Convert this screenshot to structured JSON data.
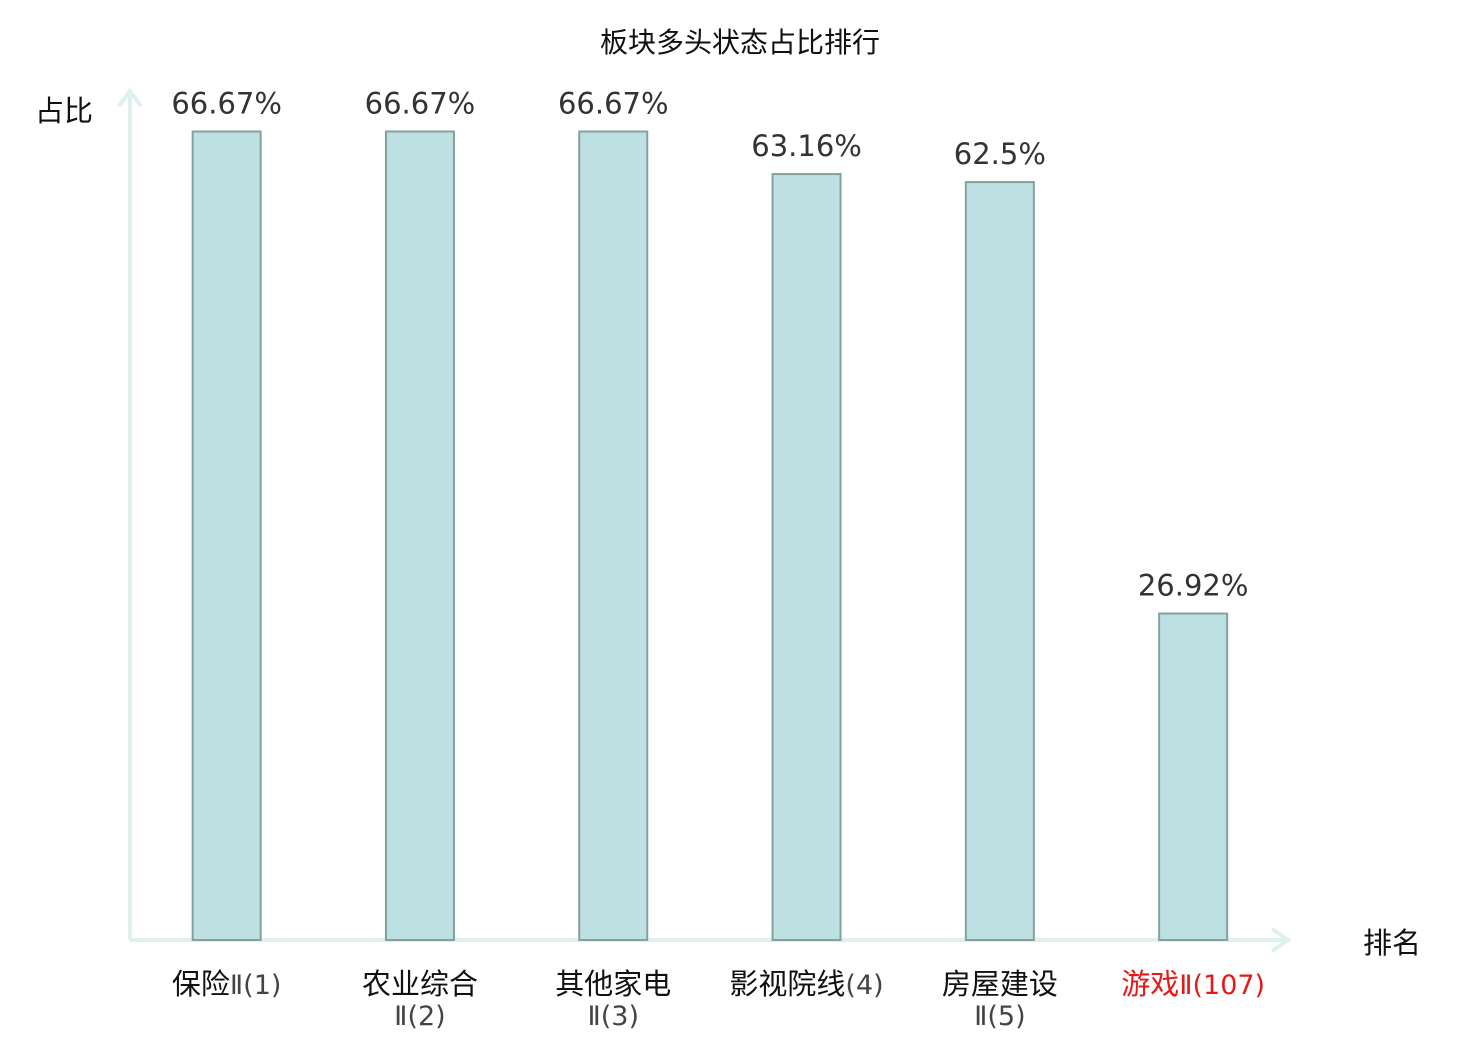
{
  "chart_data": {
    "type": "bar",
    "title": "板块多头状态占比排行",
    "ylabel": "占比",
    "xlabel": "排名",
    "ylim": [
      0,
      70
    ],
    "grid": false,
    "categories": [
      {
        "name": "保险",
        "rank": "Ⅱ(1)",
        "highlight": false
      },
      {
        "name": "农业综合",
        "rank": "Ⅱ(2)",
        "highlight": false
      },
      {
        "name": "其他家电",
        "rank": "Ⅱ(3)",
        "highlight": false
      },
      {
        "name": "影视院线",
        "rank": "(4)",
        "highlight": false
      },
      {
        "name": "房屋建设",
        "rank": "Ⅱ(5)",
        "highlight": false
      },
      {
        "name": "游戏",
        "rank": "Ⅱ(107)",
        "highlight": true
      }
    ],
    "values": [
      66.67,
      66.67,
      66.67,
      63.16,
      62.5,
      26.92
    ],
    "value_labels": [
      "66.67%",
      "66.67%",
      "66.67%",
      "63.16%",
      "62.5%",
      "26.92%"
    ]
  },
  "colors": {
    "bar_fill": "#bde1e3",
    "bar_stroke": "#869fa1",
    "axis": "#dff1ee",
    "highlight": "#e41a1a"
  }
}
